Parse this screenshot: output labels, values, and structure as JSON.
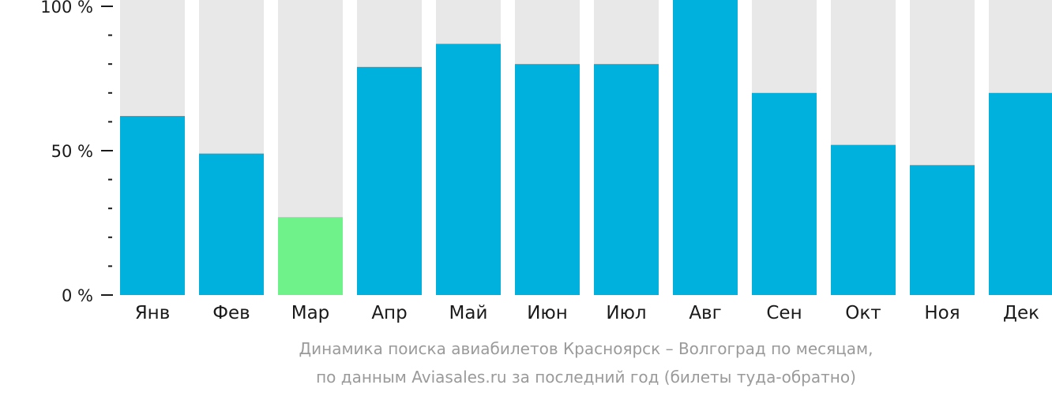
{
  "chart_data": {
    "type": "bar",
    "title": "Динамика поиска авиабилетов Красноярск – Волгоград по месяцам,",
    "subtitle": "по данным Aviasales.ru за последний год (билеты туда-обратно)",
    "categories": [
      "Янв",
      "Фев",
      "Мар",
      "Апр",
      "Май",
      "Июн",
      "Июл",
      "Авг",
      "Сен",
      "Окт",
      "Ноя",
      "Дек"
    ],
    "values": [
      62,
      49,
      27,
      79,
      87,
      80,
      80,
      105,
      70,
      52,
      45,
      70
    ],
    "ylim": [
      0,
      100
    ],
    "yticks": [
      {
        "value": 0,
        "label": "0 %"
      },
      {
        "value": 50,
        "label": "50 %"
      },
      {
        "value": 100,
        "label": "100 %"
      }
    ],
    "minor_tick_step": 10,
    "highlight_index": 2,
    "colors": {
      "bar": "#00b0dd",
      "highlight": "#6ef289",
      "background_bar": "#e8e8e8",
      "axis": "#1a1a1a",
      "text": "#1a1a1a",
      "caption": "#9a9a9a"
    }
  }
}
